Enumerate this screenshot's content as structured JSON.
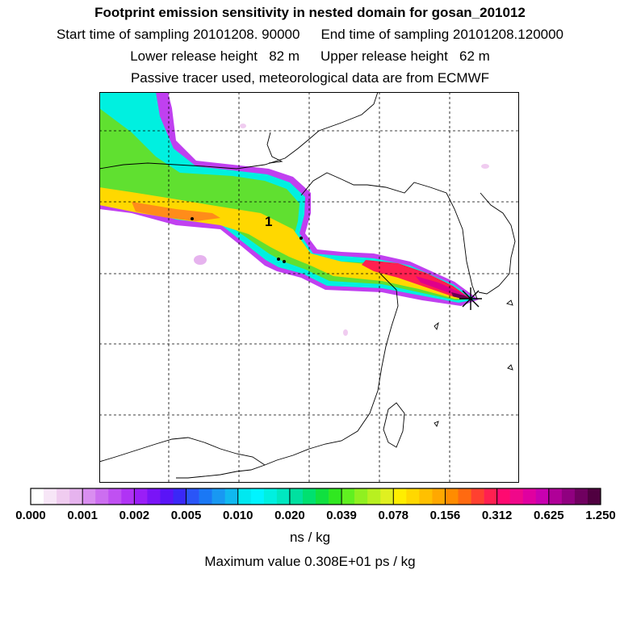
{
  "header": {
    "title": "Footprint emission sensitivity in nested domain for gosan_201012",
    "start_sampling": "Start time of sampling 20101208. 90000",
    "end_sampling": "End time of sampling 20101208.120000",
    "lower_release": "Lower release height   82 m",
    "upper_release": "Upper release height   62 m",
    "tracer_note": "Passive tracer used, meteorological data are from ECMWF"
  },
  "map": {
    "marker_label": "1",
    "grid": true,
    "receptor_symbol": "star"
  },
  "colorbar": {
    "ticks": [
      "0.000",
      "0.001",
      "0.002",
      "0.005",
      "0.010",
      "0.020",
      "0.039",
      "0.078",
      "0.156",
      "0.312",
      "0.625",
      "1.250"
    ],
    "unit": "ns / kg",
    "colors": [
      "#ffffff",
      "#f7e6f7",
      "#f0ccf0",
      "#e6b3ee",
      "#d98ef0",
      "#cc6ef0",
      "#c050f2",
      "#b033f5",
      "#9a1ef7",
      "#7a14f7",
      "#5a14f7",
      "#3a28f7",
      "#2a55f7",
      "#1a78f5",
      "#1898f2",
      "#10b8f0",
      "#00e8f0",
      "#00f4ff",
      "#00f0e0",
      "#00e8c0",
      "#00e0a0",
      "#00e070",
      "#10e040",
      "#30e820",
      "#60f020",
      "#90f020",
      "#b8f020",
      "#e0f020",
      "#ffee00",
      "#ffd800",
      "#ffc000",
      "#ffa800",
      "#ff8c00",
      "#ff6a10",
      "#ff4030",
      "#ff2050",
      "#ff0a70",
      "#f0088a",
      "#e000a0",
      "#c800b0",
      "#b00098",
      "#900080",
      "#700060",
      "#500040"
    ]
  },
  "footer": {
    "max_value": "Maximum value  0.308E+01 ps / kg"
  }
}
